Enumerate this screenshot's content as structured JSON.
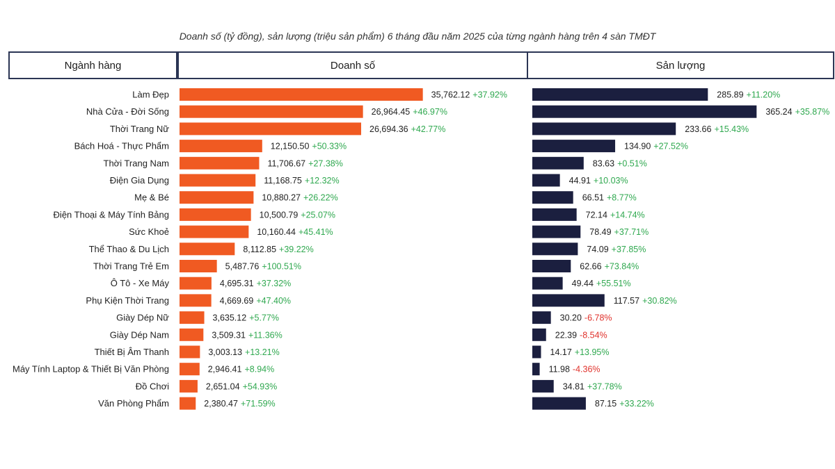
{
  "chart_data": {
    "type": "bar",
    "title": "Doanh số (tỷ đồng), sản lượng (triệu sản phẩm) 6 tháng đầu năm 2025 của từng ngành hàng trên 4 sàn TMĐT",
    "headers": {
      "category": "Ngành hàng",
      "revenue": "Doanh số",
      "volume": "Sản lượng"
    },
    "colors": {
      "revenue": "#f05a22",
      "volume": "#1b1f3f",
      "positive": "#2fa84f",
      "negative": "#e0312b",
      "border": "#2b3554"
    },
    "categories": [
      "Làm Đẹp",
      "Nhà Cửa - Đời Sống",
      "Thời Trang Nữ",
      "Bách Hoá - Thực Phẩm",
      "Thời Trang Nam",
      "Điện Gia Dụng",
      "Mẹ & Bé",
      "Điện Thoại & Máy Tính Bảng",
      "Sức Khoẻ",
      "Thể Thao & Du Lịch",
      "Thời Trang Trẻ Em",
      "Ô Tô - Xe Máy",
      "Phụ Kiện Thời Trang",
      "Giày Dép Nữ",
      "Giày Dép Nam",
      "Thiết Bị Âm Thanh",
      "Máy Tính  Laptop & Thiết Bị Văn Phòng",
      "Đồ Chơi",
      "Văn Phòng Phẩm"
    ],
    "series": [
      {
        "name": "Doanh số",
        "values": [
          35762.12,
          26964.45,
          26694.36,
          12150.5,
          11706.67,
          11168.75,
          10880.27,
          10500.79,
          10160.44,
          8112.85,
          5487.76,
          4695.31,
          4669.69,
          3635.12,
          3509.31,
          3003.13,
          2946.41,
          2651.04,
          2380.47
        ],
        "value_labels": [
          "35,762.12",
          "26,964.45",
          "26,694.36",
          "12,150.50",
          "11,706.67",
          "11,168.75",
          "10,880.27",
          "10,500.79",
          "10,160.44",
          "8,112.85",
          "5,487.76",
          "4,695.31",
          "4,669.69",
          "3,635.12",
          "3,509.31",
          "3,003.13",
          "2,946.41",
          "2,651.04",
          "2,380.47"
        ],
        "changes": [
          "+37.92%",
          "+46.97%",
          "+42.77%",
          "+50.33%",
          "+27.38%",
          "+12.32%",
          "+26.22%",
          "+25.07%",
          "+45.41%",
          "+39.22%",
          "+100.51%",
          "+37.32%",
          "+47.40%",
          "+5.77%",
          "+11.36%",
          "+13.21%",
          "+8.94%",
          "+54.93%",
          "+71.59%"
        ],
        "xlim": [
          0,
          36000
        ]
      },
      {
        "name": "Sản lượng",
        "values": [
          285.89,
          365.24,
          233.66,
          134.9,
          83.63,
          44.91,
          66.51,
          72.14,
          78.49,
          74.09,
          62.66,
          49.44,
          117.57,
          30.2,
          22.39,
          14.17,
          11.98,
          34.81,
          87.15
        ],
        "value_labels": [
          "285.89",
          "365.24",
          "233.66",
          "134.90",
          "83.63",
          "44.91",
          "66.51",
          "72.14",
          "78.49",
          "74.09",
          "62.66",
          "49.44",
          "117.57",
          "30.20",
          "22.39",
          "14.17",
          "11.98",
          "34.81",
          "87.15"
        ],
        "changes": [
          "+11.20%",
          "+35.87%",
          "+15.43%",
          "+27.52%",
          "+0.51%",
          "+10.03%",
          "+8.77%",
          "+14.74%",
          "+37.71%",
          "+37.85%",
          "+73.84%",
          "+55.51%",
          "+30.82%",
          "-6.78%",
          "-8.54%",
          "+13.95%",
          "-4.36%",
          "+37.78%",
          "+33.22%"
        ],
        "xlim": [
          0,
          366
        ]
      }
    ]
  }
}
